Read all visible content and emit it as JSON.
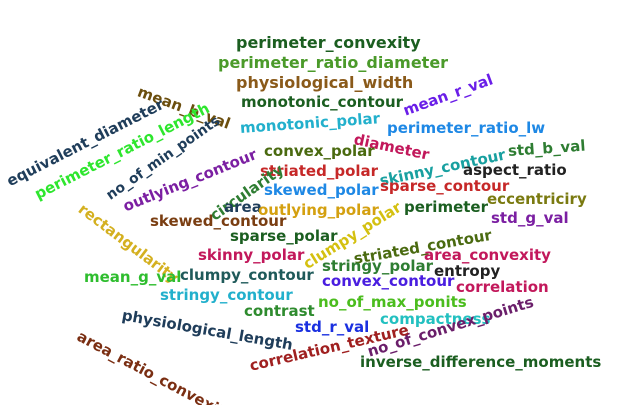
{
  "words": [
    {
      "text": "perimeter_convexity",
      "color": "#1b5e20"
    },
    {
      "text": "perimeter_ratio_diameter",
      "color": "#4b9a2a"
    },
    {
      "text": "physiological_width",
      "color": "#8a5a1a"
    },
    {
      "text": "mean_b_val",
      "color": "#6b4e0e"
    },
    {
      "text": "monotonic_contour",
      "color": "#1b5e20"
    },
    {
      "text": "mean_r_val",
      "color": "#6a1ee8"
    },
    {
      "text": "equivalent_diameter",
      "color": "#1f3d5a"
    },
    {
      "text": "perimeter_ratio_length",
      "color": "#2ee62e"
    },
    {
      "text": "no_of_min_points",
      "color": "#1f3d5a"
    },
    {
      "text": "monotonic_polar",
      "color": "#22b0cc"
    },
    {
      "text": "diameter",
      "color": "#c2185b"
    },
    {
      "text": "perimeter_ratio_lw",
      "color": "#1e88e5"
    },
    {
      "text": "convex_polar",
      "color": "#4a6a10"
    },
    {
      "text": "skinny_contour",
      "color": "#18a0a0"
    },
    {
      "text": "std_b_val",
      "color": "#2e7d32"
    },
    {
      "text": "outlying_contour",
      "color": "#7b1fa2"
    },
    {
      "text": "striated_polar",
      "color": "#c62828"
    },
    {
      "text": "aspect_ratio",
      "color": "#222222"
    },
    {
      "text": "sparse_contour",
      "color": "#c62828"
    },
    {
      "text": "circularity",
      "color": "#2e7d32"
    },
    {
      "text": "skewed_polar",
      "color": "#1e88e5"
    },
    {
      "text": "eccentriciry",
      "color": "#7a7a10"
    },
    {
      "text": "perimeter",
      "color": "#1b5e20"
    },
    {
      "text": "area",
      "color": "#1f3d5a"
    },
    {
      "text": "outlying_polar",
      "color": "#d4a010"
    },
    {
      "text": "std_g_val",
      "color": "#7b1fa2"
    },
    {
      "text": "skewed_contour",
      "color": "#7a3e12"
    },
    {
      "text": "rectangularity",
      "color": "#d4b020"
    },
    {
      "text": "clumpy_polar",
      "color": "#d4c010"
    },
    {
      "text": "sparse_polar",
      "color": "#1b5e20"
    },
    {
      "text": "striated_contour",
      "color": "#4a6a10"
    },
    {
      "text": "skinny_polar",
      "color": "#c2185b"
    },
    {
      "text": "area_convexity",
      "color": "#c2185b"
    },
    {
      "text": "stringy_polar",
      "color": "#2e7d32"
    },
    {
      "text": "entropy",
      "color": "#222222"
    },
    {
      "text": "mean_g_val",
      "color": "#2ebd2e"
    },
    {
      "text": "clumpy_contour",
      "color": "#1f5a5a"
    },
    {
      "text": "convex_contour",
      "color": "#4a1ee0"
    },
    {
      "text": "correlation",
      "color": "#c2185b"
    },
    {
      "text": "stringy_contour",
      "color": "#22b0cc"
    },
    {
      "text": "physiological_length",
      "color": "#1f3d5a"
    },
    {
      "text": "no_of_max_ponits",
      "color": "#4bbd1e"
    },
    {
      "text": "area_ratio_convexity",
      "color": "#7a2e12"
    },
    {
      "text": "contrast",
      "color": "#2e8b2e"
    },
    {
      "text": "compactness",
      "color": "#22c0c0"
    },
    {
      "text": "std_r_val",
      "color": "#1a30e0"
    },
    {
      "text": "no_of_convex_points",
      "color": "#6a1e6a"
    },
    {
      "text": "correlation_texture",
      "color": "#a02020"
    },
    {
      "text": "inverse_difference_moments",
      "color": "#1b5e20"
    }
  ]
}
